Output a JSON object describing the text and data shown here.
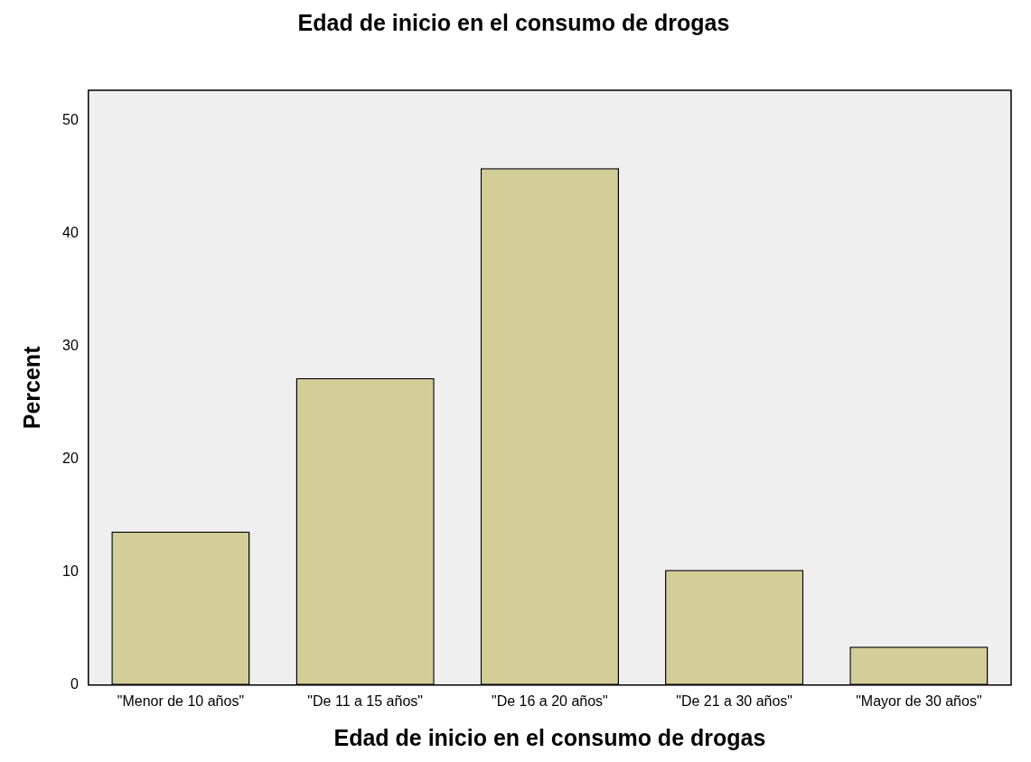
{
  "chart_data": {
    "type": "bar",
    "title": "Edad de inicio en el consumo de drogas",
    "xlabel": "Edad de inicio en el consumo de drogas",
    "ylabel": "Percent",
    "categories": [
      "\"Menor de 10 años\"",
      "\"De 11 a 15 años\"",
      "\"De 16 a 20 años\"",
      "\"De 21 a 30 años\"",
      "\"Mayor de 30 años\""
    ],
    "values": [
      13.6,
      27.2,
      45.8,
      10.2,
      3.4
    ],
    "color": "#d3ce97",
    "ylim": [
      0,
      52.7
    ],
    "yticks": [
      0,
      10,
      20,
      30,
      40,
      50
    ],
    "grid": false,
    "legend": false
  }
}
